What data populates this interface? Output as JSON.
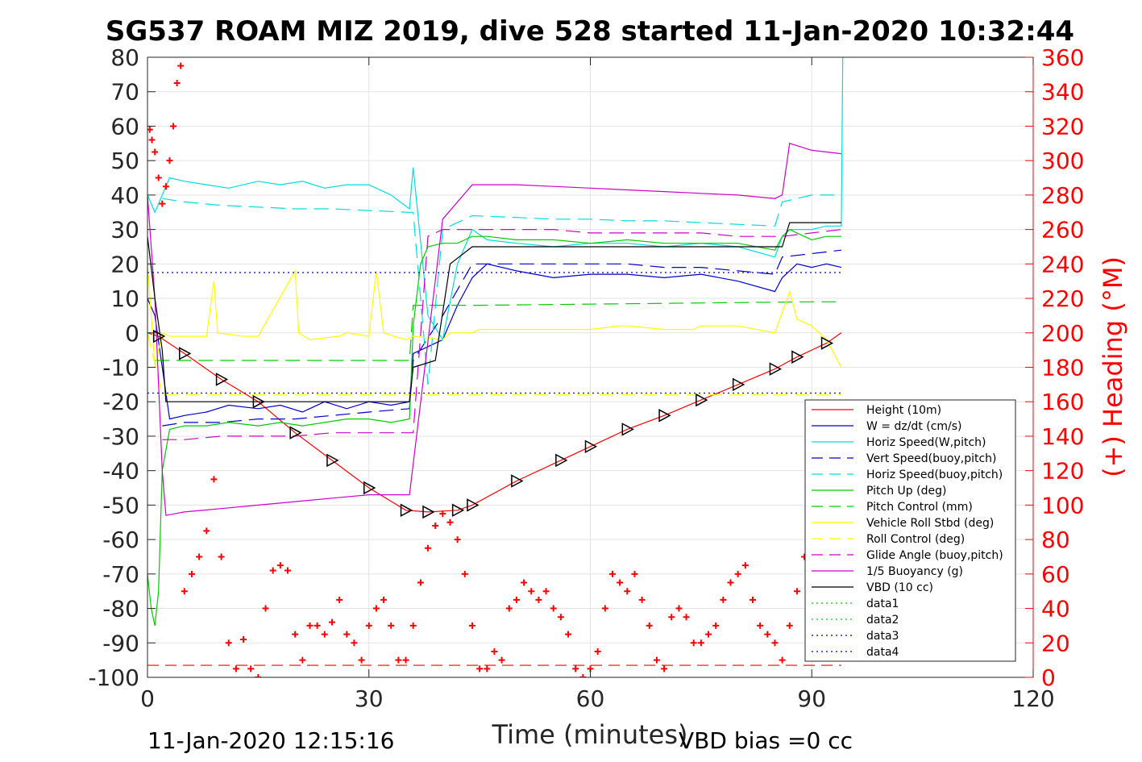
{
  "chart_data": {
    "type": "line",
    "title": "SG537 ROAM MIZ 2019, dive 528 started 11-Jan-2020 10:32:44",
    "xlabel": "Time (minutes)",
    "ylabel_right": "(+) Heading (°M)",
    "xlim": [
      0,
      120
    ],
    "ylim_left": [
      -100,
      80
    ],
    "ylim_right": [
      0,
      360
    ],
    "xticks": [
      "0",
      "30",
      "60",
      "90",
      "120"
    ],
    "yticks_left": [
      "80",
      "70",
      "60",
      "50",
      "40",
      "30",
      "20",
      "10",
      "0",
      "-10",
      "-20",
      "-30",
      "-40",
      "-50",
      "-60",
      "-70",
      "-80",
      "-90",
      "-100"
    ],
    "yticks_right": [
      "360",
      "340",
      "320",
      "300",
      "280",
      "260",
      "240",
      "220",
      "200",
      "180",
      "160",
      "140",
      "120",
      "100",
      "80",
      "60",
      "40",
      "20",
      "0"
    ],
    "grid": true,
    "legend_position": "lower-right",
    "footer_left": "11-Jan-2020 12:15:16",
    "footer_right": "VBD bias =0 cc",
    "series": [
      {
        "name": "Height (10m)",
        "color": "#ff0000",
        "dash": "solid",
        "x": [
          0,
          1.5,
          5,
          10,
          15,
          20,
          25,
          30,
          35,
          38,
          42,
          44,
          50,
          56,
          60,
          65,
          70,
          75,
          80,
          85,
          88,
          92,
          94
        ],
        "y": [
          0,
          -1,
          -6,
          -13.5,
          -20,
          -29,
          -37,
          -45,
          -51.5,
          -52,
          -51.5,
          -50,
          -43,
          -37,
          -33,
          -28,
          -24,
          -19.5,
          -15,
          -10.5,
          -7,
          -3,
          0
        ]
      },
      {
        "name": "W = dz/dt (cm/s)",
        "color": "#0000cc",
        "dash": "solid",
        "x": [
          0,
          1,
          2,
          3,
          5,
          8,
          11,
          15,
          18,
          21,
          24,
          27,
          30,
          33,
          35.5,
          36,
          38,
          40,
          42,
          44,
          46,
          50,
          55,
          60,
          65,
          70,
          75,
          80,
          85,
          86,
          87,
          88,
          90,
          92,
          94
        ],
        "y": [
          10,
          5,
          -10,
          -25,
          -24,
          -23,
          -21,
          -22,
          -21,
          -23,
          -20,
          -22,
          -20,
          -21,
          -20,
          -6,
          -4,
          -2,
          8,
          16,
          20,
          18,
          16,
          17,
          17,
          16,
          17,
          15,
          12,
          16,
          18,
          20,
          19,
          20,
          19
        ]
      },
      {
        "name": "Horiz Speed(W,pitch)",
        "color": "#00dddd",
        "dash": "solid",
        "x": [
          0,
          1,
          2,
          3,
          5,
          8,
          11,
          15,
          18,
          21,
          24,
          27,
          30,
          33,
          35.5,
          36,
          38,
          40,
          42,
          44,
          46,
          50,
          55,
          60,
          65,
          70,
          75,
          80,
          85,
          86,
          87,
          88,
          90,
          92,
          94,
          94.2
        ],
        "y": [
          40,
          35,
          40,
          45,
          44,
          43,
          42,
          44,
          43,
          44,
          42,
          43,
          43,
          40,
          36,
          48,
          5,
          -2,
          20,
          30,
          27,
          26,
          25,
          26,
          26,
          25,
          26,
          25,
          22,
          28,
          30,
          30,
          30,
          31,
          31,
          80
        ]
      },
      {
        "name": "Vert Speed(buoy,pitch)",
        "color": "#0000cc",
        "dash": "dashed",
        "x": [
          2,
          5,
          10,
          15,
          20,
          25,
          30,
          35.5,
          36,
          40,
          44,
          50,
          55,
          60,
          65,
          70,
          75,
          80,
          85,
          86,
          90,
          94
        ],
        "y": [
          -27,
          -26,
          -26,
          -25,
          -25,
          -24,
          -23,
          -22,
          -8,
          5,
          20,
          20,
          20,
          20,
          20,
          19,
          19,
          18,
          17,
          22,
          23,
          24
        ]
      },
      {
        "name": "Horiz Speed(buoy,pitch)",
        "color": "#00dddd",
        "dash": "dashed",
        "x": [
          2,
          5,
          10,
          15,
          20,
          25,
          30,
          35.5,
          36,
          38,
          40,
          44,
          50,
          55,
          60,
          65,
          70,
          75,
          80,
          85,
          86,
          90,
          94
        ],
        "y": [
          39,
          38,
          37,
          36.5,
          36,
          36,
          35.5,
          35,
          35,
          -15,
          30,
          34,
          33.5,
          33,
          33,
          32.5,
          32.5,
          32,
          31.5,
          31,
          38,
          40,
          40
        ]
      },
      {
        "name": "Pitch Up (deg)",
        "color": "#00cc00",
        "dash": "solid",
        "x": [
          0,
          0.5,
          1,
          1.5,
          2,
          3,
          5,
          8,
          11,
          15,
          18,
          21,
          24,
          27,
          30,
          33,
          35.5,
          36,
          37,
          38,
          40,
          42,
          44,
          46,
          50,
          55,
          60,
          65,
          70,
          75,
          80,
          85,
          86,
          87,
          88,
          90,
          92,
          94
        ],
        "y": [
          -70,
          -80,
          -85,
          -75,
          -40,
          -28,
          -27,
          -27,
          -26,
          -27,
          -26,
          -27,
          -26,
          -25,
          -25,
          -26,
          -25,
          2,
          20,
          25,
          26,
          26,
          28,
          28,
          27,
          27,
          26,
          27,
          26,
          26,
          26,
          24,
          28,
          30,
          29,
          27,
          28,
          28
        ]
      },
      {
        "name": "Pitch Control (mm)",
        "color": "#00cc00",
        "dash": "dashed",
        "x": [
          1,
          5,
          30,
          35.5,
          36,
          40,
          45,
          90,
          94
        ],
        "y": [
          -8,
          -8,
          -8,
          -8,
          8,
          8,
          8,
          9,
          9
        ]
      },
      {
        "name": "Vehicle Roll Stbd (deg)",
        "color": "#ffff00",
        "dash": "solid",
        "x": [
          0,
          1,
          2,
          3,
          4,
          5,
          8,
          9,
          9.5,
          13,
          13.5,
          15,
          20,
          20.5,
          22,
          26,
          27,
          30,
          31,
          32,
          35,
          36,
          40,
          41,
          44,
          45,
          55,
          60,
          64,
          65,
          70,
          74,
          75,
          80,
          85,
          87,
          88,
          90,
          92,
          94
        ],
        "y": [
          20,
          -10,
          0,
          -1,
          -1,
          -1,
          -1,
          15,
          0,
          -1,
          -1,
          -1,
          18,
          0,
          -2,
          -1,
          0,
          -1,
          18,
          0,
          -2,
          -1,
          -2,
          0,
          0,
          1,
          1,
          1,
          2,
          2,
          1,
          1,
          2,
          2,
          0,
          12,
          4,
          2,
          -2,
          -10
        ]
      },
      {
        "name": "Roll Control (deg)",
        "color": "#ffff00",
        "dash": "dashed",
        "x": [
          0,
          2,
          10,
          20,
          30,
          36,
          40,
          50,
          60,
          70,
          80,
          90,
          94
        ],
        "y": [
          0,
          -18,
          -18,
          -18,
          -18,
          -18,
          -18,
          -18,
          -18,
          -18,
          -18,
          -18,
          -18
        ]
      },
      {
        "name": "Glide Angle (buoy,pitch)",
        "color": "#cc00cc",
        "dash": "dashed",
        "x": [
          2,
          5,
          10,
          15,
          20,
          25,
          30,
          35.5,
          36,
          38,
          40,
          44,
          50,
          55,
          60,
          65,
          70,
          75,
          80,
          85,
          86,
          90,
          94
        ],
        "y": [
          -31,
          -31,
          -30,
          -30,
          -30,
          -29,
          -29,
          -29,
          -29,
          28,
          30,
          30,
          30,
          30,
          29,
          29,
          29,
          29,
          28,
          28,
          28,
          29,
          30
        ]
      },
      {
        "name": "1/5 Buoyancy (g)",
        "color": "#cc00cc",
        "dash": "solid",
        "x": [
          0,
          1,
          2,
          2.5,
          5,
          10,
          15,
          20,
          25,
          30,
          35.5,
          40,
          44,
          50,
          55,
          60,
          65,
          70,
          75,
          80,
          85,
          86,
          87,
          90,
          94
        ],
        "y": [
          40,
          10,
          -40,
          -53,
          -52,
          -51,
          -50,
          -49,
          -48,
          -47,
          -47,
          33,
          43,
          43,
          42.5,
          42,
          41.5,
          41,
          40.5,
          40,
          39,
          40,
          55,
          53,
          52
        ]
      },
      {
        "name": "VBD (10 cc)",
        "color": "#000000",
        "dash": "solid",
        "x": [
          0,
          1,
          2,
          2.5,
          5,
          10,
          15,
          20,
          25,
          30,
          35.5,
          36,
          39,
          41,
          44,
          50,
          55,
          60,
          65,
          70,
          75,
          80,
          85,
          86,
          87,
          90,
          94
        ],
        "y": [
          28,
          10,
          -5,
          -20,
          -20,
          -20,
          -20,
          -20,
          -20,
          -20,
          -20,
          -10,
          -8,
          20,
          25,
          25,
          25,
          25,
          25,
          25,
          25,
          25,
          25,
          25,
          32,
          32,
          32
        ]
      },
      {
        "name": "data1",
        "color": "#00cc00",
        "dash": "dotted",
        "x": [],
        "y": []
      },
      {
        "name": "data2",
        "color": "#00cc00",
        "dash": "dotted",
        "x": [],
        "y": []
      },
      {
        "name": "data3",
        "color": "#0000cc",
        "dash": "dotted",
        "x": [
          0,
          94
        ],
        "y": [
          17.5,
          17.5
        ]
      },
      {
        "name": "data4",
        "color": "#0000cc",
        "dash": "dotted",
        "x": [
          0,
          94
        ],
        "y": [
          -17.5,
          -17.5
        ]
      }
    ],
    "heading_series": {
      "color": "#ff0000",
      "marker": "+",
      "axis": "right",
      "x": [
        0.3,
        0.6,
        1,
        1.5,
        2,
        2.5,
        3,
        3.5,
        4,
        4.5,
        5,
        6,
        7,
        8,
        9,
        10,
        11,
        12,
        13,
        14,
        15,
        16,
        17,
        18,
        19,
        20,
        21,
        22,
        23,
        24,
        25,
        26,
        27,
        28,
        29,
        30,
        31,
        32,
        33,
        34,
        35,
        36,
        37,
        38,
        39,
        40,
        41,
        42,
        43,
        44,
        45,
        46,
        47,
        48,
        49,
        50,
        51,
        52,
        53,
        54,
        55,
        56,
        57,
        58,
        59,
        60,
        61,
        62,
        63,
        64,
        65,
        66,
        67,
        68,
        69,
        70,
        71,
        72,
        73,
        74,
        75,
        76,
        77,
        78,
        79,
        80,
        81,
        82,
        83,
        84,
        85,
        86,
        87,
        88,
        89,
        90
      ],
      "y": [
        318,
        312,
        305,
        290,
        275,
        285,
        300,
        320,
        345,
        355,
        50,
        60,
        70,
        85,
        115,
        70,
        20,
        5,
        22,
        5,
        0,
        40,
        62,
        65,
        62,
        25,
        10,
        30,
        30,
        25,
        32,
        45,
        25,
        20,
        10,
        30,
        40,
        45,
        30,
        10,
        10,
        30,
        55,
        75,
        88,
        95,
        90,
        80,
        60,
        30,
        5,
        5,
        15,
        10,
        40,
        45,
        55,
        50,
        45,
        50,
        40,
        35,
        25,
        5,
        0,
        5,
        15,
        40,
        60,
        55,
        50,
        60,
        45,
        30,
        10,
        5,
        35,
        40,
        35,
        20,
        20,
        25,
        30,
        45,
        55,
        60,
        65,
        45,
        30,
        25,
        20,
        10,
        30,
        50,
        70,
        85
      ]
    },
    "reference_lines": [
      {
        "color": "#ff0000",
        "dash": "dashed",
        "axis": "left",
        "y": -96.5,
        "x": [
          0,
          94
        ]
      }
    ]
  }
}
